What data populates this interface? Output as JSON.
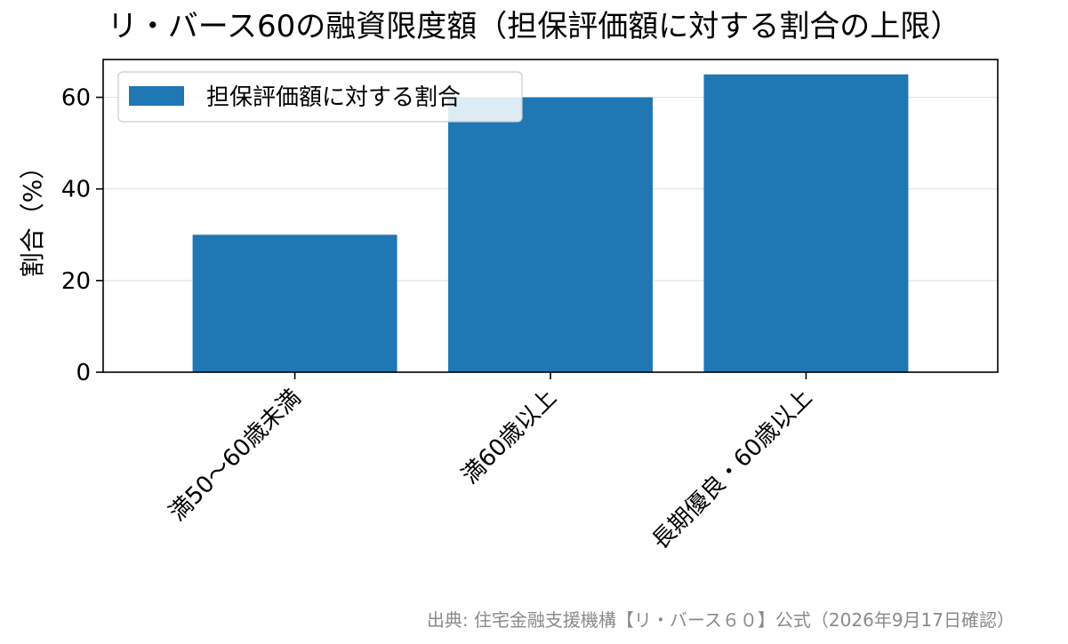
{
  "chart_data": {
    "type": "bar",
    "title": "リ・バース60の融資限度額（担保評価額に対する割合の上限）",
    "categories": [
      "満50～60歳未満",
      "満60歳以上",
      "長期優良・60歳以上"
    ],
    "series": [
      {
        "name": "担保評価額に対する割合",
        "values": [
          30,
          60,
          65
        ],
        "color": "#1f77b4"
      }
    ],
    "xlabel": "",
    "ylabel": "割合（%）",
    "ylim": [
      0,
      68.25
    ],
    "yticks": [
      0,
      20,
      40,
      60
    ],
    "grid": "y",
    "legend_position": "upper left"
  },
  "source_note": "出典: 住宅金融支援機構【リ・バース６０】公式（2026年9月17日確認）"
}
